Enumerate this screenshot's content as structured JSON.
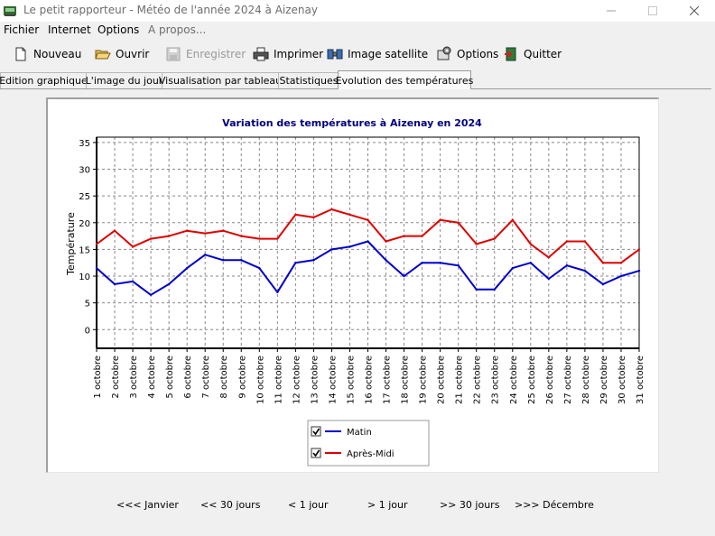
{
  "window": {
    "title": "Le petit rapporteur - Météo de l'année 2024 à Aizenay",
    "minimize_icon": "minimize-icon",
    "maximize_icon": "maximize-icon",
    "close_icon": "close-icon"
  },
  "menu": [
    {
      "label": "Fichier",
      "disabled": false
    },
    {
      "label": "Internet",
      "disabled": false
    },
    {
      "label": "Options",
      "disabled": false
    },
    {
      "label": "A propos...",
      "disabled": true
    }
  ],
  "toolbar": {
    "nouveau": "Nouveau",
    "ouvrir": "Ouvrir",
    "enregistrer": "Enregistrer",
    "imprimer": "Imprimer",
    "image_satellite": "Image satellite",
    "options": "Options",
    "quitter": "Quitter"
  },
  "tabs": [
    {
      "label": "Edition graphique",
      "active": false
    },
    {
      "label": "L'image du jour",
      "active": false
    },
    {
      "label": "Visualisation par tableau",
      "active": false
    },
    {
      "label": "Statistiques",
      "active": false
    },
    {
      "label": "Evolution des températures",
      "active": true
    }
  ],
  "chart_data": {
    "type": "line",
    "title": "Variation des températures à Aizenay en 2024",
    "ylabel": "Température",
    "xlabel": "",
    "ylim": [
      -3.5,
      36
    ],
    "yticks": [
      0,
      5,
      10,
      15,
      20,
      25,
      30,
      35
    ],
    "grid": true,
    "legend_position": "bottom-center",
    "categories": [
      "1 octobre",
      "2 octobre",
      "3 octobre",
      "4 octobre",
      "5 octobre",
      "6 octobre",
      "7 octobre",
      "8 octobre",
      "9 octobre",
      "10 octobre",
      "11 octobre",
      "12 octobre",
      "13 octobre",
      "14 octobre",
      "15 octobre",
      "16 octobre",
      "17 octobre",
      "18 octobre",
      "19 octobre",
      "20 octobre",
      "21 octobre",
      "22 octobre",
      "23 octobre",
      "24 octobre",
      "25 octobre",
      "26 octobre",
      "27 octobre",
      "28 octobre",
      "29 octobre",
      "30 octobre",
      "31 octobre"
    ],
    "series": [
      {
        "name": "Matin",
        "color": "#0000cc",
        "values": [
          11.5,
          8.5,
          9.0,
          6.5,
          8.5,
          11.5,
          14.0,
          13.0,
          13.0,
          11.5,
          7.0,
          12.5,
          13.0,
          15.0,
          15.5,
          16.5,
          13.0,
          10.0,
          12.5,
          12.5,
          12.0,
          7.5,
          7.5,
          11.5,
          12.5,
          9.5,
          12.0,
          11.0,
          8.5,
          10.0,
          11.0
        ]
      },
      {
        "name": "Après-Midi",
        "color": "#e00000",
        "values": [
          16.0,
          18.5,
          15.5,
          17.0,
          17.5,
          18.5,
          18.0,
          18.5,
          17.5,
          17.0,
          17.0,
          21.5,
          21.0,
          22.5,
          21.5,
          20.5,
          16.5,
          17.5,
          17.5,
          20.5,
          20.0,
          16.0,
          17.0,
          20.5,
          16.0,
          13.5,
          16.5,
          16.5,
          12.5,
          12.5,
          15.0
        ]
      }
    ],
    "legend": [
      {
        "label": "Matin",
        "checked": true
      },
      {
        "label": "Après-Midi",
        "checked": true
      }
    ]
  },
  "navigation": {
    "janvier": "<<< Janvier",
    "minus_30": "<< 30 jours",
    "minus_1": "< 1 jour",
    "plus_1": "> 1 jour",
    "plus_30": ">> 30 jours",
    "decembre": ">>> Décembre"
  }
}
